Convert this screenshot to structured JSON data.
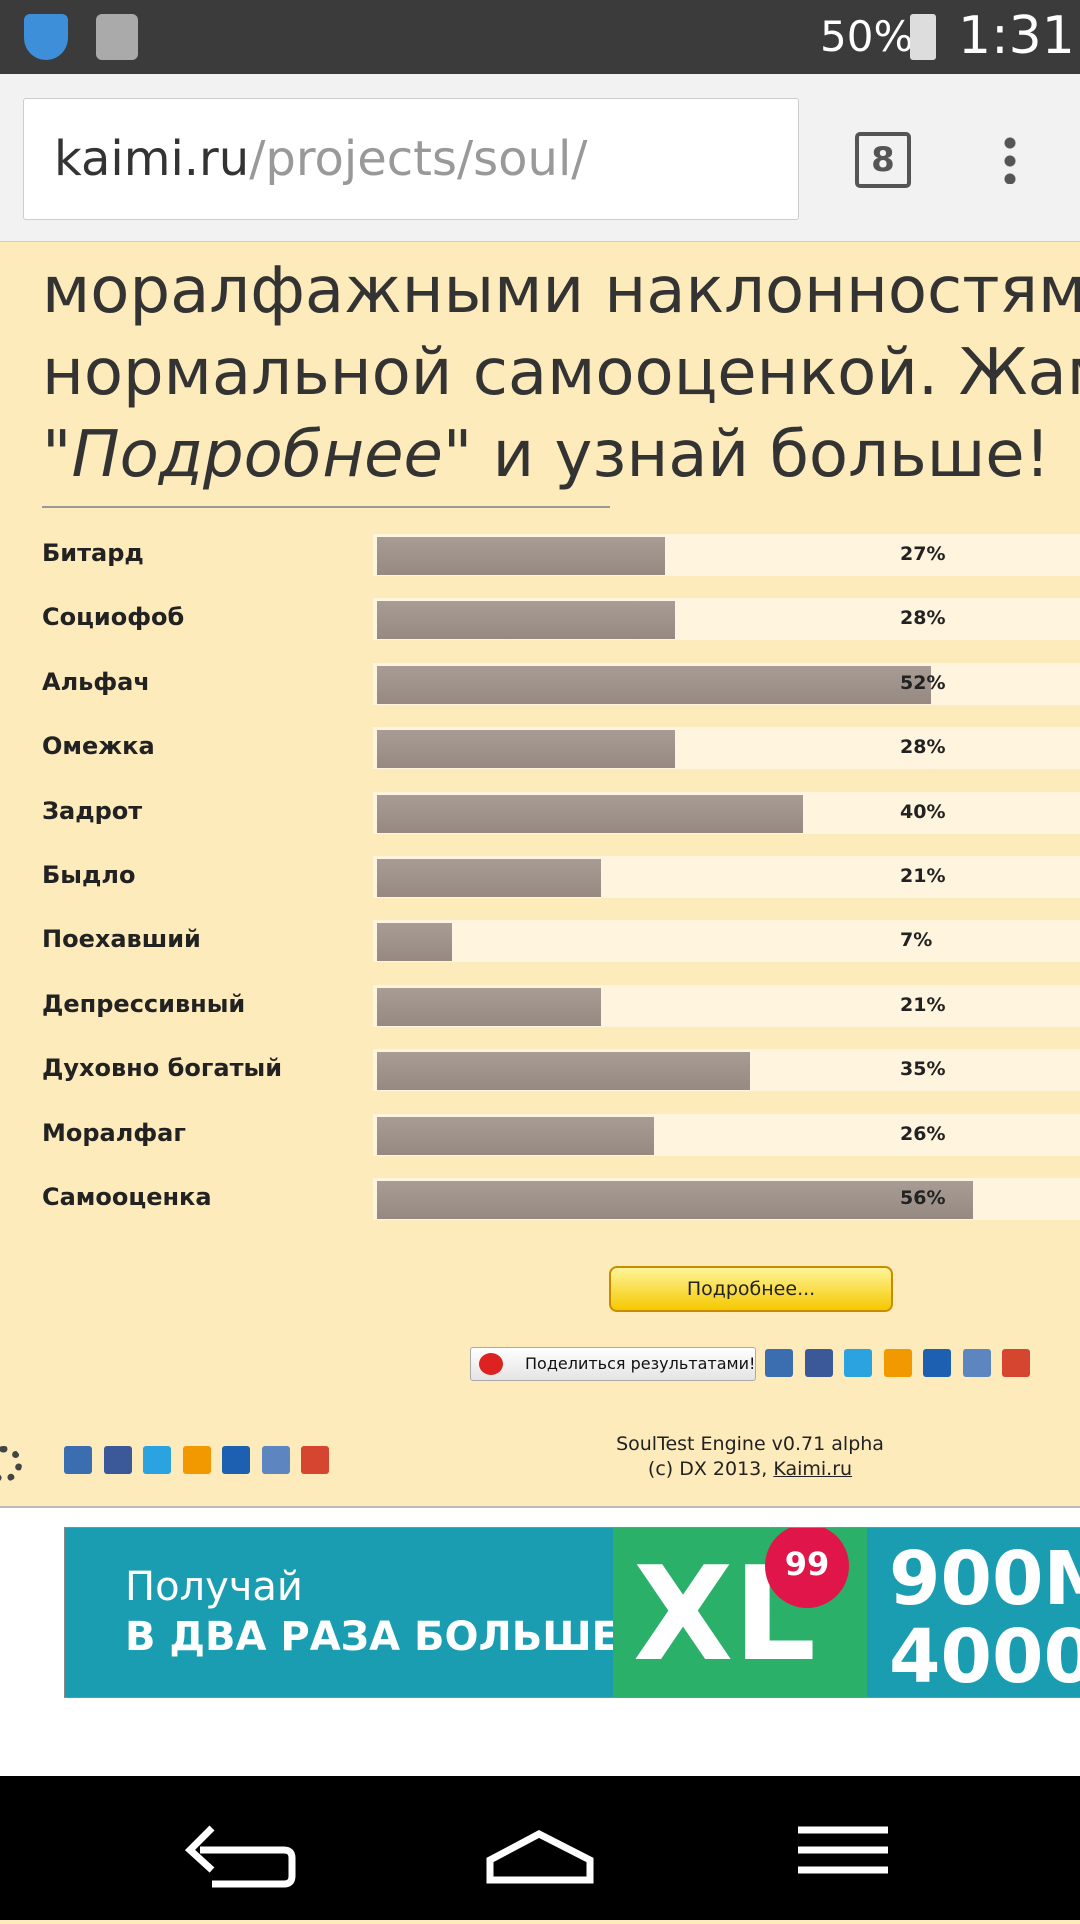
{
  "status_bar": {
    "battery": "50%",
    "time": "1:31"
  },
  "browser": {
    "domain": "kaimi.ru",
    "path": "/projects/soul/",
    "tab_count": "8"
  },
  "intro": {
    "line1": "моралфажными наклонностям",
    "line2": "нормальной самооценкой. Жам",
    "line3_open": "\"",
    "line3_emphasis": "Подробнее",
    "line3_rest": "\" и узнай больше!"
  },
  "results": {
    "categories": [
      "Битард",
      "Социофоб",
      "Альфач",
      "Омежка",
      "Задрот",
      "Быдло",
      "Поехавший",
      "Депрессивный",
      "Духовно богатый",
      "Моралфаг",
      "Самооценка"
    ],
    "values": [
      27,
      28,
      52,
      28,
      40,
      21,
      7,
      21,
      35,
      26,
      56
    ],
    "value_labels": [
      "27%",
      "28%",
      "52%",
      "28%",
      "40%",
      "21%",
      "7%",
      "21%",
      "35%",
      "26%",
      "56%"
    ],
    "xlim": [
      0,
      100
    ]
  },
  "details_button": "Подробнее...",
  "share_button": "Поделиться результатами!",
  "footer": {
    "engine": "SoulTest Engine v0.71 alpha",
    "copyright": "(c) DX 2013, ",
    "link": "Kaimi.ru"
  },
  "ad": {
    "line1": "Получай",
    "line2": "В ДВА РАЗА БОЛЬШЕ",
    "brand": "XL",
    "price": "99",
    "offer1": "900М",
    "offer2": "4000"
  }
}
